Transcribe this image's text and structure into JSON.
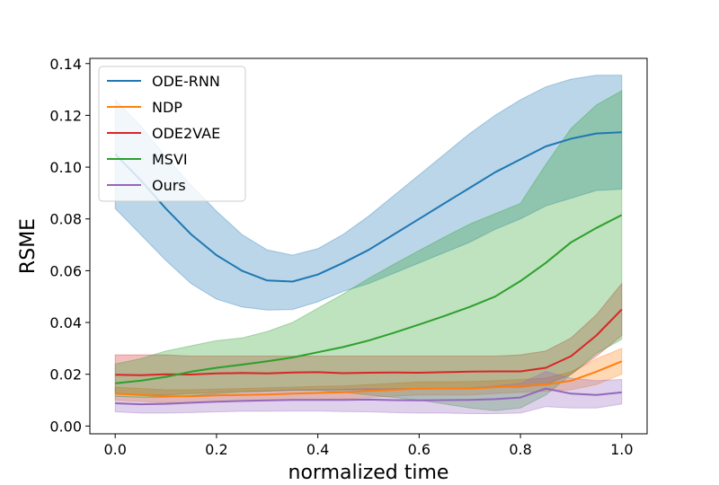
{
  "chart_data": {
    "type": "line",
    "title": "",
    "xlabel": "normalized time",
    "ylabel": "RSME",
    "xlim": [
      -0.05,
      1.05
    ],
    "ylim": [
      -0.003,
      0.142
    ],
    "xticks": [
      0.0,
      0.2,
      0.4,
      0.6,
      0.8,
      1.0
    ],
    "xtick_labels": [
      "0.0",
      "0.2",
      "0.4",
      "0.6",
      "0.8",
      "1.0"
    ],
    "yticks": [
      0.0,
      0.02,
      0.04,
      0.06,
      0.08,
      0.1,
      0.12,
      0.14
    ],
    "ytick_labels": [
      "0.00",
      "0.02",
      "0.04",
      "0.06",
      "0.08",
      "0.10",
      "0.12",
      "0.14"
    ],
    "legend_position": "top-left",
    "x": [
      0.0,
      0.05,
      0.1,
      0.15,
      0.2,
      0.25,
      0.3,
      0.35,
      0.4,
      0.45,
      0.5,
      0.55,
      0.6,
      0.65,
      0.7,
      0.75,
      0.8,
      0.85,
      0.9,
      0.95,
      1.0
    ],
    "series": [
      {
        "name": "ODE-RNN",
        "color": "#1f77b4",
        "values": [
          0.105,
          0.095,
          0.084,
          0.074,
          0.066,
          0.06,
          0.0562,
          0.0558,
          0.0585,
          0.063,
          0.068,
          0.074,
          0.08,
          0.086,
          0.092,
          0.098,
          0.103,
          0.108,
          0.111,
          0.113,
          0.1135
        ],
        "upper": [
          0.126,
          0.116,
          0.104,
          0.093,
          0.083,
          0.074,
          0.068,
          0.066,
          0.0685,
          0.074,
          0.081,
          0.089,
          0.097,
          0.105,
          0.113,
          0.12,
          0.126,
          0.131,
          0.134,
          0.1355,
          0.1355
        ],
        "lower": [
          0.084,
          0.074,
          0.064,
          0.055,
          0.049,
          0.046,
          0.0448,
          0.045,
          0.048,
          0.052,
          0.055,
          0.059,
          0.063,
          0.067,
          0.071,
          0.076,
          0.08,
          0.085,
          0.088,
          0.091,
          0.0915
        ]
      },
      {
        "name": "NDP",
        "color": "#ff7f0e",
        "values": [
          0.0125,
          0.012,
          0.0115,
          0.0115,
          0.0118,
          0.012,
          0.0122,
          0.0125,
          0.0128,
          0.013,
          0.0135,
          0.014,
          0.0145,
          0.0145,
          0.0145,
          0.015,
          0.0155,
          0.016,
          0.0175,
          0.021,
          0.025
        ],
        "upper": [
          0.015,
          0.0145,
          0.014,
          0.014,
          0.0142,
          0.0145,
          0.0148,
          0.015,
          0.0153,
          0.0155,
          0.016,
          0.0165,
          0.017,
          0.017,
          0.0172,
          0.0175,
          0.018,
          0.0185,
          0.021,
          0.026,
          0.03
        ],
        "lower": [
          0.01,
          0.0095,
          0.009,
          0.009,
          0.0094,
          0.0095,
          0.0097,
          0.01,
          0.0103,
          0.0105,
          0.011,
          0.0115,
          0.012,
          0.012,
          0.012,
          0.0125,
          0.013,
          0.0135,
          0.014,
          0.016,
          0.02
        ]
      },
      {
        "name": "ODE2VAE",
        "color": "#d62728",
        "values": [
          0.0198,
          0.0196,
          0.02,
          0.0199,
          0.0203,
          0.0205,
          0.0203,
          0.0207,
          0.0208,
          0.0204,
          0.0206,
          0.0207,
          0.0206,
          0.0208,
          0.021,
          0.0211,
          0.0211,
          0.0225,
          0.027,
          0.035,
          0.045
        ],
        "upper": [
          0.0275,
          0.0275,
          0.0275,
          0.027,
          0.027,
          0.027,
          0.027,
          0.027,
          0.027,
          0.027,
          0.027,
          0.027,
          0.027,
          0.027,
          0.027,
          0.027,
          0.0275,
          0.029,
          0.034,
          0.043,
          0.055
        ],
        "lower": [
          0.0125,
          0.012,
          0.012,
          0.0125,
          0.013,
          0.0135,
          0.0135,
          0.014,
          0.014,
          0.014,
          0.014,
          0.0145,
          0.0145,
          0.0145,
          0.0145,
          0.015,
          0.015,
          0.016,
          0.02,
          0.027,
          0.035
        ]
      },
      {
        "name": "MSVI",
        "color": "#2ca02c",
        "values": [
          0.0165,
          0.0175,
          0.019,
          0.021,
          0.0225,
          0.0237,
          0.025,
          0.0265,
          0.0285,
          0.0305,
          0.033,
          0.036,
          0.0392,
          0.0425,
          0.046,
          0.05,
          0.056,
          0.063,
          0.071,
          0.0765,
          0.0815
        ],
        "upper": [
          0.024,
          0.026,
          0.029,
          0.031,
          0.033,
          0.034,
          0.0365,
          0.04,
          0.0455,
          0.051,
          0.057,
          0.0625,
          0.0678,
          0.073,
          0.078,
          0.082,
          0.086,
          0.101,
          0.115,
          0.124,
          0.1295
        ],
        "lower": [
          0.0115,
          0.0112,
          0.0112,
          0.0116,
          0.0125,
          0.0132,
          0.0135,
          0.0138,
          0.0138,
          0.013,
          0.012,
          0.011,
          0.01,
          0.0085,
          0.007,
          0.006,
          0.007,
          0.012,
          0.02,
          0.028,
          0.0335
        ]
      },
      {
        "name": "Ours",
        "color": "#9467bd",
        "values": [
          0.0088,
          0.0084,
          0.0086,
          0.009,
          0.0094,
          0.0097,
          0.0099,
          0.0101,
          0.0101,
          0.0101,
          0.0102,
          0.01,
          0.0099,
          0.01,
          0.0101,
          0.0104,
          0.011,
          0.0145,
          0.0125,
          0.012,
          0.013
        ],
        "upper": [
          0.0115,
          0.011,
          0.0112,
          0.0118,
          0.0125,
          0.013,
          0.0135,
          0.0138,
          0.014,
          0.0142,
          0.0145,
          0.0143,
          0.0142,
          0.0144,
          0.0148,
          0.0155,
          0.0165,
          0.021,
          0.0185,
          0.0175,
          0.018
        ],
        "lower": [
          0.0055,
          0.005,
          0.005,
          0.0052,
          0.0055,
          0.0057,
          0.0057,
          0.0058,
          0.0058,
          0.0056,
          0.0055,
          0.0052,
          0.005,
          0.005,
          0.0048,
          0.0048,
          0.005,
          0.0075,
          0.007,
          0.007,
          0.0085
        ]
      }
    ]
  }
}
